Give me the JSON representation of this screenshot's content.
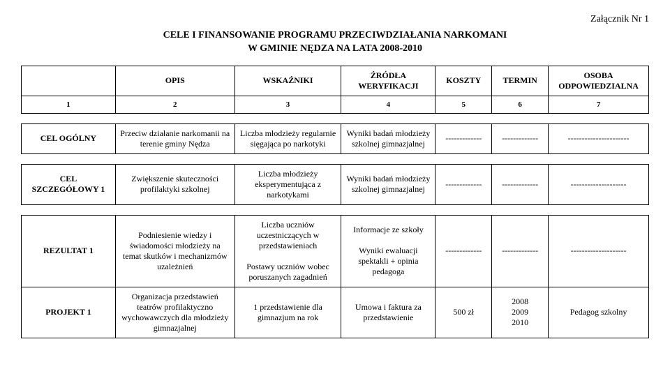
{
  "attachment": "Załącznik Nr 1",
  "title_line1": "CELE I FINANSOWANIE PROGRAMU PRZECIWDZIAŁANIA NARKOMANI",
  "title_line2": "W GMINIE NĘDZA NA LATA 2008-2010",
  "headers": {
    "c1": "",
    "c2": "OPIS",
    "c3": "WSKAŹNIKI",
    "c4": "ŹRÓDŁA WERYFIKACJI",
    "c5": "KOSZTY",
    "c6": "TERMIN",
    "c7": "OSOBA ODPOWIEDZIALNA"
  },
  "nums": {
    "c1": "1",
    "c2": "2",
    "c3": "3",
    "c4": "4",
    "c5": "5",
    "c6": "6",
    "c7": "7"
  },
  "rows": [
    {
      "c1": "CEL OGÓLNY",
      "c2": "Przeciw działanie narkomanii na terenie gminy Nędza",
      "c3": "Liczba młodzieży regularnie sięgająca po narkotyki",
      "c4": "Wyniki badań młodzieży szkolnej gimnazjalnej",
      "c5": "-------------",
      "c6": "-------------",
      "c7": "----------------------"
    },
    {
      "c1": "CEL SZCZEGÓŁOWY 1",
      "c2": "Zwiększenie skuteczności profilaktyki szkolnej",
      "c3": "Liczba młodzieży eksperymentująca z narkotykami",
      "c4": "Wyniki badań młodzieży szkolnej gimnazjalnej",
      "c5": "-------------",
      "c6": "-------------",
      "c7": "--------------------"
    },
    {
      "c1": "REZULTAT 1",
      "c2": "Podniesienie wiedzy i świadomości młodzieży na temat skutków i mechanizmów uzależnień",
      "c3": "Liczba uczniów uczestniczących w przedstawieniach\n\nPostawy uczniów wobec poruszanych zagadnień",
      "c4": "Informacje ze szkoły\n\nWyniki ewaluacji spektakli + opinia pedagoga",
      "c5": "-------------",
      "c6": "-------------",
      "c7": "--------------------"
    },
    {
      "c1": "PROJEKT 1",
      "c2": "Organizacja przedstawień teatrów profilaktyczno wychowawczych dla młodzieży gimnazjalnej",
      "c3": "1 przedstawienie dla gimnazjum na rok",
      "c4": "Umowa i faktura za przedstawienie",
      "c5": "500 zł",
      "c6": "2008\n2009\n2010",
      "c7": "Pedagog szkolny"
    }
  ]
}
